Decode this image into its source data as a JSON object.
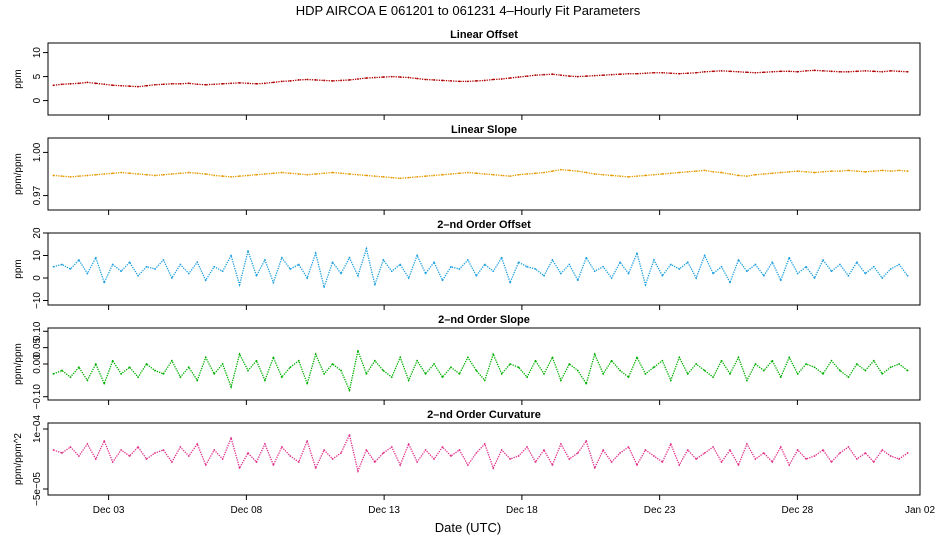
{
  "page": {
    "title": "HDP   AIRCOA E   061201 to 061231   4–Hourly Fit Parameters",
    "xlabel": "Date (UTC)",
    "x_ticks": [
      "Dec 03",
      "Dec 08",
      "Dec 13",
      "Dec 18",
      "Dec 23",
      "Dec 28",
      "Jan 02"
    ]
  },
  "chart_data": [
    {
      "type": "line",
      "title": "Linear Offset",
      "ylabel": "ppm",
      "ylim": [
        -3,
        12
      ],
      "y_ticks": [
        "0",
        "5",
        "10"
      ],
      "y_tick_values": [
        0,
        5,
        10
      ],
      "color": "#b00000",
      "x": {
        "start": "2006-12-01",
        "end": "2007-01-01",
        "step_hours": 4
      },
      "values": [
        3.2,
        3.4,
        3.5,
        3.6,
        3.8,
        3.6,
        3.4,
        3.2,
        3.1,
        3.0,
        2.9,
        3.1,
        3.3,
        3.4,
        3.5,
        3.5,
        3.6,
        3.4,
        3.3,
        3.4,
        3.5,
        3.6,
        3.7,
        3.6,
        3.5,
        3.6,
        3.8,
        4.0,
        4.1,
        4.3,
        4.4,
        4.3,
        4.2,
        4.1,
        4.2,
        4.3,
        4.5,
        4.7,
        4.8,
        4.9,
        5.0,
        4.9,
        4.8,
        4.6,
        4.4,
        4.3,
        4.2,
        4.1,
        4.0,
        4.0,
        4.1,
        4.2,
        4.4,
        4.5,
        4.7,
        4.9,
        5.1,
        5.3,
        5.4,
        5.5,
        5.3,
        5.1,
        5.0,
        5.1,
        5.2,
        5.3,
        5.4,
        5.5,
        5.6,
        5.6,
        5.7,
        5.8,
        5.8,
        5.7,
        5.6,
        5.7,
        5.8,
        6.0,
        6.1,
        6.2,
        6.1,
        6.0,
        5.9,
        5.8,
        5.9,
        6.0,
        6.1,
        6.1,
        6.0,
        6.2,
        6.3,
        6.2,
        6.1,
        6.0,
        6.0,
        6.1,
        6.2,
        6.1,
        6.0,
        6.2,
        6.1,
        6.0
      ]
    },
    {
      "type": "line",
      "title": "Linear Slope",
      "ylabel": "ppm/ppm",
      "ylim": [
        0.96,
        1.01
      ],
      "y_ticks": [
        "0.97",
        "1.00"
      ],
      "y_tick_values": [
        0.97,
        1.0
      ],
      "color": "#e69a00",
      "x": {
        "start": "2006-12-01",
        "end": "2007-01-01",
        "step_hours": 4
      },
      "values": [
        0.984,
        0.9835,
        0.983,
        0.9835,
        0.984,
        0.9845,
        0.985,
        0.9855,
        0.986,
        0.9855,
        0.985,
        0.9845,
        0.984,
        0.9845,
        0.985,
        0.9855,
        0.986,
        0.9855,
        0.985,
        0.984,
        0.9835,
        0.983,
        0.9835,
        0.984,
        0.9845,
        0.985,
        0.9855,
        0.986,
        0.9855,
        0.985,
        0.9845,
        0.985,
        0.9855,
        0.986,
        0.9855,
        0.985,
        0.9845,
        0.984,
        0.9835,
        0.983,
        0.9825,
        0.982,
        0.9825,
        0.983,
        0.9835,
        0.984,
        0.9845,
        0.985,
        0.9855,
        0.986,
        0.9855,
        0.985,
        0.9845,
        0.984,
        0.9835,
        0.9845,
        0.985,
        0.9855,
        0.986,
        0.987,
        0.988,
        0.9875,
        0.987,
        0.986,
        0.985,
        0.9845,
        0.984,
        0.9835,
        0.983,
        0.9835,
        0.984,
        0.9845,
        0.985,
        0.9855,
        0.986,
        0.9865,
        0.987,
        0.9875,
        0.9865,
        0.986,
        0.985,
        0.984,
        0.9835,
        0.9845,
        0.985,
        0.9855,
        0.986,
        0.9865,
        0.987,
        0.9865,
        0.986,
        0.9865,
        0.987,
        0.987,
        0.9875,
        0.987,
        0.9865,
        0.987,
        0.9875,
        0.987,
        0.9875,
        0.987
      ]
    },
    {
      "type": "line",
      "title": "2–nd Order Offset",
      "ylabel": "ppm",
      "ylim": [
        -12,
        20
      ],
      "y_ticks": [
        "−10",
        "0",
        "10",
        "20"
      ],
      "y_tick_values": [
        -10,
        0,
        10,
        20
      ],
      "color": "#1fa0e0",
      "x": {
        "start": "2006-12-01",
        "end": "2007-01-01",
        "step_hours": 4
      },
      "values": [
        5,
        6,
        4,
        8,
        2,
        9,
        -2,
        6,
        3,
        7,
        1,
        5,
        4,
        8,
        0,
        6,
        2,
        7,
        -1,
        5,
        3,
        10,
        -3,
        12,
        1,
        8,
        -2,
        9,
        4,
        6,
        0,
        11,
        -4,
        7,
        2,
        9,
        1,
        13,
        -3,
        8,
        3,
        6,
        0,
        10,
        2,
        7,
        -1,
        5,
        4,
        8,
        1,
        6,
        3,
        9,
        -2,
        7,
        5,
        4,
        1,
        8,
        2,
        6,
        -1,
        9,
        3,
        5,
        0,
        7,
        2,
        11,
        -3,
        8,
        1,
        6,
        4,
        7,
        0,
        10,
        2,
        5,
        -2,
        8,
        3,
        6,
        1,
        7,
        -1,
        9,
        2,
        5,
        0,
        8,
        3,
        6,
        1,
        7,
        2,
        5,
        0,
        4,
        6,
        1
      ]
    },
    {
      "type": "line",
      "title": "2–nd Order Slope",
      "ylabel": "ppm/ppm",
      "ylim": [
        -0.11,
        0.11
      ],
      "y_ticks": [
        "−0.10",
        "0.00",
        "0.05",
        "0.10"
      ],
      "y_tick_values": [
        -0.1,
        0.0,
        0.05,
        0.1
      ],
      "color": "#00b000",
      "x": {
        "start": "2006-12-01",
        "end": "2007-01-01",
        "step_hours": 4
      },
      "values": [
        -0.03,
        -0.02,
        -0.04,
        -0.01,
        -0.05,
        0.0,
        -0.06,
        0.01,
        -0.03,
        -0.01,
        -0.04,
        0.0,
        -0.02,
        -0.03,
        0.01,
        -0.04,
        -0.01,
        -0.05,
        0.02,
        -0.03,
        0.0,
        -0.07,
        0.03,
        -0.02,
        0.01,
        -0.05,
        0.02,
        -0.04,
        -0.01,
        0.01,
        -0.06,
        0.03,
        -0.03,
        0.0,
        -0.02,
        -0.08,
        0.04,
        -0.03,
        0.01,
        -0.02,
        -0.04,
        0.02,
        -0.05,
        0.01,
        -0.03,
        0.0,
        -0.04,
        -0.01,
        -0.03,
        0.02,
        -0.02,
        -0.05,
        0.03,
        -0.03,
        0.0,
        -0.01,
        -0.04,
        0.01,
        -0.03,
        0.02,
        -0.05,
        0.0,
        -0.02,
        -0.06,
        0.03,
        -0.03,
        0.01,
        -0.02,
        -0.04,
        0.02,
        -0.03,
        -0.01,
        0.01,
        -0.05,
        0.02,
        -0.03,
        0.0,
        -0.02,
        -0.04,
        0.01,
        -0.03,
        0.02,
        -0.05,
        0.0,
        -0.02,
        0.01,
        -0.04,
        0.02,
        -0.03,
        0.0,
        -0.01,
        -0.03,
        0.01,
        -0.02,
        -0.04,
        0.0,
        -0.02,
        0.01,
        -0.03,
        -0.01,
        0.0,
        -0.02
      ]
    },
    {
      "type": "line",
      "title": "2–nd Order Curvature",
      "ylabel": "ppm/ppm^2",
      "ylim": [
        -0.00012,
        0.00012
      ],
      "y_ticks": [
        "−5e−05",
        "1e−04"
      ],
      "y_tick_values": [
        -0.0001,
        0.0001
      ],
      "color": "#e0308a",
      "x": {
        "start": "2006-12-01",
        "end": "2007-01-01",
        "step_hours": 4
      },
      "values": [
        3e-05,
        2e-05,
        4e-05,
        1e-05,
        5e-05,
        0.0,
        6e-05,
        -1e-05,
        3e-05,
        1e-05,
        4e-05,
        0.0,
        2e-05,
        3e-05,
        -1e-05,
        4e-05,
        1e-05,
        5e-05,
        -2e-05,
        3e-05,
        0.0,
        7e-05,
        -3e-05,
        2e-05,
        -1e-05,
        5e-05,
        -2e-05,
        4e-05,
        1e-05,
        -1e-05,
        6e-05,
        -3e-05,
        3e-05,
        0.0,
        2e-05,
        8e-05,
        -4e-05,
        3e-05,
        -1e-05,
        2e-05,
        4e-05,
        -2e-05,
        5e-05,
        -1e-05,
        3e-05,
        0.0,
        4e-05,
        1e-05,
        3e-05,
        -2e-05,
        2e-05,
        5e-05,
        -3e-05,
        3e-05,
        0.0,
        1e-05,
        4e-05,
        -1e-05,
        3e-05,
        -2e-05,
        5e-05,
        0.0,
        2e-05,
        6e-05,
        -3e-05,
        3e-05,
        -1e-05,
        2e-05,
        4e-05,
        -2e-05,
        3e-05,
        1e-05,
        -1e-05,
        5e-05,
        -2e-05,
        3e-05,
        0.0,
        2e-05,
        4e-05,
        -1e-05,
        3e-05,
        -2e-05,
        5e-05,
        0.0,
        2e-05,
        -1e-05,
        4e-05,
        -2e-05,
        3e-05,
        0.0,
        1e-05,
        3e-05,
        -1e-05,
        2e-05,
        4e-05,
        0.0,
        2e-05,
        -1e-05,
        3e-05,
        1e-05,
        0.0,
        2e-05
      ]
    }
  ]
}
